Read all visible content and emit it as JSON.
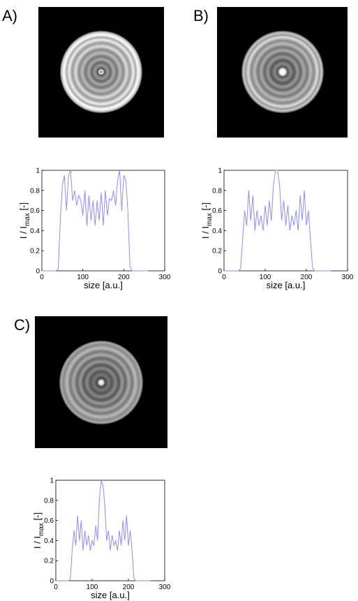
{
  "chart_data": [
    {
      "type": "line",
      "panel_label": "A)",
      "xlabel": "size [a.u.]",
      "ylabel": {
        "main": "I / I",
        "sub": "max",
        "unit": " [-]"
      },
      "xlim": [
        0,
        300
      ],
      "xticks": [
        0,
        100,
        200,
        300
      ],
      "ylim": [
        0,
        1
      ],
      "yticks": [
        0,
        0.2,
        0.4,
        0.6,
        0.8,
        1
      ],
      "color": "#8f8fef",
      "x": [
        0,
        5,
        10,
        15,
        20,
        25,
        30,
        35,
        40,
        45,
        50,
        55,
        60,
        65,
        70,
        75,
        80,
        85,
        90,
        95,
        100,
        105,
        110,
        115,
        120,
        125,
        130,
        135,
        140,
        145,
        150,
        155,
        160,
        165,
        170,
        175,
        180,
        185,
        190,
        195,
        200,
        205,
        210,
        215,
        220,
        225,
        230,
        235,
        240,
        245,
        250,
        255,
        260
      ],
      "values": [
        0,
        0,
        0,
        0,
        0,
        0,
        0,
        0,
        0.02,
        0.5,
        0.85,
        0.95,
        0.6,
        0.95,
        1,
        0.7,
        0.8,
        0.65,
        0.75,
        0.7,
        0.55,
        0.8,
        0.45,
        0.75,
        0.5,
        0.7,
        0.45,
        0.7,
        0.5,
        0.78,
        0.45,
        0.8,
        0.55,
        0.72,
        0.7,
        0.8,
        0.65,
        0.9,
        1,
        0.6,
        0.95,
        0.9,
        0.6,
        0.05,
        0,
        0,
        0,
        0,
        0,
        0,
        0,
        0,
        0
      ]
    },
    {
      "type": "line",
      "panel_label": "B)",
      "xlabel": "size [a.u.]",
      "ylabel": {
        "main": "I / I",
        "sub": "max",
        "unit": " [-]"
      },
      "xlim": [
        0,
        300
      ],
      "xticks": [
        0,
        100,
        200,
        300
      ],
      "ylim": [
        0,
        1
      ],
      "yticks": [
        0,
        0.2,
        0.4,
        0.6,
        0.8,
        1
      ],
      "color": "#8f8fef",
      "x": [
        0,
        5,
        10,
        15,
        20,
        25,
        30,
        35,
        40,
        45,
        50,
        55,
        60,
        65,
        70,
        75,
        80,
        85,
        90,
        95,
        100,
        105,
        110,
        115,
        120,
        125,
        130,
        135,
        140,
        145,
        150,
        155,
        160,
        165,
        170,
        175,
        180,
        185,
        190,
        195,
        200,
        205,
        210,
        215,
        220,
        225,
        230,
        235,
        240,
        245,
        250,
        255,
        260
      ],
      "values": [
        0,
        0,
        0,
        0,
        0,
        0,
        0,
        0,
        0.02,
        0.3,
        0.6,
        0.45,
        0.8,
        0.5,
        0.75,
        0.4,
        0.6,
        0.45,
        0.55,
        0.4,
        0.65,
        0.45,
        0.7,
        0.5,
        0.85,
        1,
        1,
        0.85,
        0.5,
        0.7,
        0.45,
        0.65,
        0.4,
        0.55,
        0.45,
        0.6,
        0.4,
        0.75,
        0.5,
        0.8,
        0.45,
        0.6,
        0.3,
        0.03,
        0,
        0,
        0,
        0,
        0,
        0,
        0,
        0,
        0
      ]
    },
    {
      "type": "line",
      "panel_label": "C)",
      "xlabel": "size [a.u.]",
      "ylabel": {
        "main": "I / I",
        "sub": "max",
        "unit": " [-]"
      },
      "xlim": [
        0,
        300
      ],
      "xticks": [
        0,
        100,
        200,
        300
      ],
      "ylim": [
        0,
        1
      ],
      "yticks": [
        0,
        0.2,
        0.4,
        0.6,
        0.8,
        1
      ],
      "color": "#8f8fef",
      "x": [
        0,
        5,
        10,
        15,
        20,
        25,
        30,
        35,
        40,
        45,
        50,
        55,
        60,
        65,
        70,
        75,
        80,
        85,
        90,
        95,
        100,
        105,
        110,
        115,
        120,
        125,
        130,
        135,
        140,
        145,
        150,
        155,
        160,
        165,
        170,
        175,
        180,
        185,
        190,
        195,
        200,
        205,
        210,
        215,
        220,
        225,
        230,
        235,
        240,
        245,
        250,
        255,
        260
      ],
      "values": [
        0,
        0,
        0,
        0,
        0,
        0,
        0,
        0,
        0.02,
        0.3,
        0.5,
        0.35,
        0.65,
        0.4,
        0.6,
        0.3,
        0.5,
        0.35,
        0.45,
        0.3,
        0.4,
        0.35,
        0.55,
        0.4,
        0.8,
        1,
        0.95,
        0.75,
        0.4,
        0.5,
        0.3,
        0.45,
        0.35,
        0.4,
        0.3,
        0.5,
        0.35,
        0.6,
        0.4,
        0.65,
        0.35,
        0.5,
        0.3,
        0.03,
        0,
        0,
        0,
        0,
        0,
        0,
        0,
        0,
        0
      ]
    }
  ]
}
